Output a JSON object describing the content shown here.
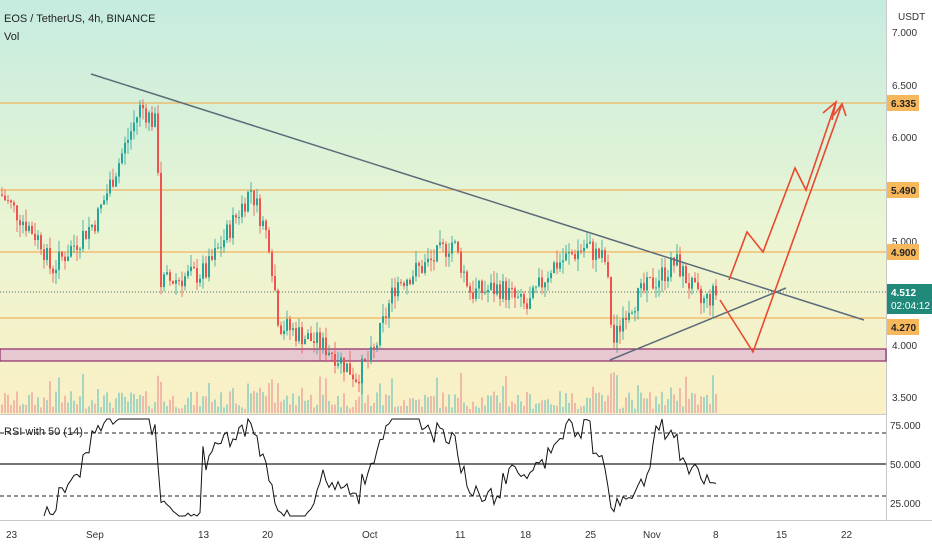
{
  "header": {
    "symbol": "EOS / TetherUS, 4h, BINANCE",
    "volume_label": "Vol",
    "rsi_label": "RSI with 50 (14)"
  },
  "price_axis": {
    "currency": "USDT",
    "ticks": [
      "7.000",
      "6.500",
      "6.000",
      "5.000",
      "4.000",
      "3.500"
    ]
  },
  "rsi_axis": {
    "ticks": [
      "75.000",
      "50.000",
      "25.000"
    ]
  },
  "time_axis": {
    "ticks": [
      "23",
      "Sep",
      "13",
      "20",
      "Oct",
      "11",
      "18",
      "25",
      "Nov",
      "8",
      "15",
      "22"
    ]
  },
  "badges": {
    "level_6335": "6.335",
    "level_5490": "5.490",
    "level_4900": "4.900",
    "last_price": "4.512",
    "countdown": "02:04:12",
    "level_4270": "4.270"
  },
  "colors": {
    "bull": "#26a69a",
    "bear": "#ef5350",
    "level_line": "#f4a340",
    "trendline": "#5c6b7a",
    "arrow": "#e8492e",
    "support_zone": "#e8c8d0",
    "support_border": "#8a2a6a",
    "last_price_badge": "#21897a"
  },
  "chart_data": {
    "type": "candlestick",
    "title": "EOS / TetherUS, 4h, BINANCE",
    "ylabel": "USDT",
    "ylim": [
      3.4,
      7.3
    ],
    "x_ticks": [
      "23",
      "Sep",
      "13",
      "20",
      "Oct",
      "11",
      "18",
      "25",
      "Nov",
      "8",
      "15",
      "22"
    ],
    "horizontal_levels": [
      6.335,
      5.49,
      4.9,
      4.27
    ],
    "last_price": 4.512,
    "support_zone": [
      3.86,
      3.99
    ],
    "approx_price_path": [
      {
        "x": "23",
        "close": 5.45
      },
      {
        "x": "Sep",
        "close": 5.2
      },
      {
        "x": "Sep",
        "close": 6.3
      },
      {
        "x": "13",
        "close": 4.7
      },
      {
        "x": "20",
        "close": 5.45
      },
      {
        "x": "20",
        "close": 4.05
      },
      {
        "x": "Oct",
        "close": 3.7
      },
      {
        "x": "Oct",
        "close": 4.5
      },
      {
        "x": "11",
        "close": 4.8
      },
      {
        "x": "18",
        "close": 4.4
      },
      {
        "x": "25",
        "close": 4.95
      },
      {
        "x": "25",
        "close": 4.2
      },
      {
        "x": "Nov",
        "close": 4.6
      },
      {
        "x": "8",
        "close": 4.512
      }
    ],
    "rsi": {
      "name": "RSI with 50 (14)",
      "levels": [
        70,
        50,
        30
      ],
      "ylim": [
        20,
        80
      ]
    }
  }
}
